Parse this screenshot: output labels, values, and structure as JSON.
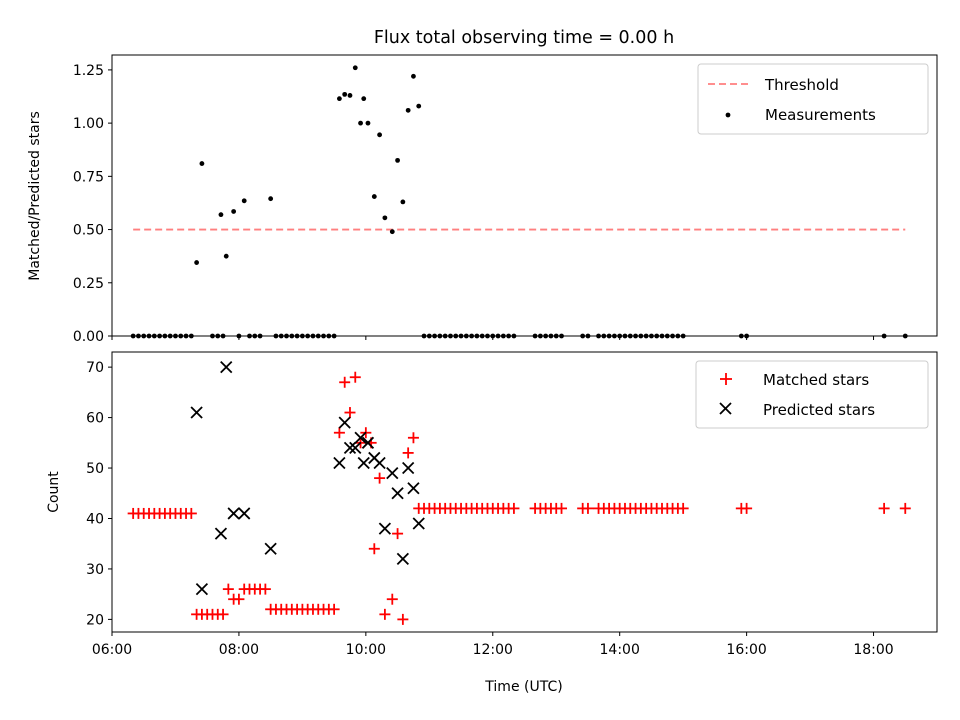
{
  "title": "Flux total observing time = 0.00 h",
  "colors": {
    "threshold": "#ff7f7f",
    "measurements": "#000000",
    "matched": "#ff0000",
    "predicted": "#000000"
  },
  "chart_data": [
    {
      "type": "scatter",
      "ylabel": "Matched/Predicted stars",
      "ylim": [
        0,
        1.32
      ],
      "xlim": [
        "06:00",
        "19:00"
      ],
      "yticks": [
        0.0,
        0.25,
        0.5,
        0.75,
        1.0,
        1.25
      ],
      "ytick_labels": [
        "0.00",
        "0.25",
        "0.50",
        "0.75",
        "1.00",
        "1.25"
      ],
      "legend_position": "top-right",
      "legend": [
        "Threshold",
        "Measurements"
      ],
      "threshold": {
        "value": 0.5,
        "x_start": "06:20",
        "x_end": "18:30"
      },
      "measurement_points": [
        [
          "07:20",
          0.345
        ],
        [
          "07:25",
          0.81
        ],
        [
          "07:43",
          0.57
        ],
        [
          "07:48",
          0.375
        ],
        [
          "07:55",
          0.585
        ],
        [
          "08:05",
          0.635
        ],
        [
          "08:30",
          0.645
        ],
        [
          "09:35",
          1.115
        ],
        [
          "09:40",
          1.135
        ],
        [
          "09:45",
          1.13
        ],
        [
          "09:50",
          1.26
        ],
        [
          "09:55",
          1.0
        ],
        [
          "09:58",
          1.115
        ],
        [
          "10:02",
          1.0
        ],
        [
          "10:08",
          0.655
        ],
        [
          "10:13",
          0.945
        ],
        [
          "10:18",
          0.555
        ],
        [
          "10:25",
          0.49
        ],
        [
          "10:30",
          0.825
        ],
        [
          "10:35",
          0.63
        ],
        [
          "10:40",
          1.06
        ],
        [
          "10:45",
          1.22
        ],
        [
          "10:50",
          1.08
        ]
      ],
      "zero_points_x": [
        "06:20",
        "06:25",
        "06:30",
        "06:35",
        "06:40",
        "06:45",
        "06:50",
        "06:55",
        "07:00",
        "07:05",
        "07:10",
        "07:15",
        "07:35",
        "07:40",
        "07:45",
        "08:00",
        "08:10",
        "08:15",
        "08:20",
        "08:35",
        "08:40",
        "08:45",
        "08:50",
        "08:55",
        "09:00",
        "09:05",
        "09:10",
        "09:15",
        "09:20",
        "09:25",
        "09:30",
        "10:55",
        "11:00",
        "11:05",
        "11:10",
        "11:15",
        "11:20",
        "11:25",
        "11:30",
        "11:35",
        "11:40",
        "11:45",
        "11:50",
        "11:55",
        "12:00",
        "12:05",
        "12:10",
        "12:15",
        "12:20",
        "12:40",
        "12:45",
        "12:50",
        "12:55",
        "13:00",
        "13:05",
        "13:25",
        "13:30",
        "13:40",
        "13:45",
        "13:50",
        "13:55",
        "14:00",
        "14:05",
        "14:10",
        "14:15",
        "14:20",
        "14:25",
        "14:30",
        "14:35",
        "14:40",
        "14:45",
        "14:50",
        "14:55",
        "15:00",
        "15:55",
        "16:00",
        "18:10",
        "18:30"
      ]
    },
    {
      "type": "scatter",
      "xlabel": "Time (UTC)",
      "ylabel": "Count",
      "ylim": [
        17.5,
        73
      ],
      "xlim": [
        "06:00",
        "19:00"
      ],
      "yticks": [
        20,
        30,
        40,
        50,
        60,
        70
      ],
      "xticks": [
        "06:00",
        "08:00",
        "10:00",
        "12:00",
        "14:00",
        "16:00",
        "18:00"
      ],
      "legend_position": "top-right",
      "legend": [
        "Matched stars",
        "Predicted stars"
      ],
      "series": [
        {
          "name": "Matched stars",
          "marker": "plus",
          "points": [
            [
              "06:20",
              41
            ],
            [
              "06:25",
              41
            ],
            [
              "06:30",
              41
            ],
            [
              "06:35",
              41
            ],
            [
              "06:40",
              41
            ],
            [
              "06:45",
              41
            ],
            [
              "06:50",
              41
            ],
            [
              "06:55",
              41
            ],
            [
              "07:00",
              41
            ],
            [
              "07:05",
              41
            ],
            [
              "07:10",
              41
            ],
            [
              "07:15",
              41
            ],
            [
              "07:20",
              21
            ],
            [
              "07:25",
              21
            ],
            [
              "07:30",
              21
            ],
            [
              "07:35",
              21
            ],
            [
              "07:40",
              21
            ],
            [
              "07:45",
              21
            ],
            [
              "07:50",
              26
            ],
            [
              "07:55",
              24
            ],
            [
              "08:00",
              24
            ],
            [
              "08:05",
              26
            ],
            [
              "08:10",
              26
            ],
            [
              "08:15",
              26
            ],
            [
              "08:20",
              26
            ],
            [
              "08:25",
              26
            ],
            [
              "08:30",
              22
            ],
            [
              "08:35",
              22
            ],
            [
              "08:40",
              22
            ],
            [
              "08:45",
              22
            ],
            [
              "08:50",
              22
            ],
            [
              "08:55",
              22
            ],
            [
              "09:00",
              22
            ],
            [
              "09:05",
              22
            ],
            [
              "09:10",
              22
            ],
            [
              "09:15",
              22
            ],
            [
              "09:20",
              22
            ],
            [
              "09:25",
              22
            ],
            [
              "09:30",
              22
            ],
            [
              "09:35",
              57
            ],
            [
              "09:40",
              67
            ],
            [
              "09:45",
              61
            ],
            [
              "09:50",
              68
            ],
            [
              "09:55",
              55
            ],
            [
              "10:00",
              57
            ],
            [
              "10:05",
              55
            ],
            [
              "10:08",
              34
            ],
            [
              "10:13",
              48
            ],
            [
              "10:18",
              21
            ],
            [
              "10:25",
              24
            ],
            [
              "10:30",
              37
            ],
            [
              "10:35",
              20
            ],
            [
              "10:40",
              53
            ],
            [
              "10:45",
              56
            ],
            [
              "10:50",
              42
            ],
            [
              "10:55",
              42
            ],
            [
              "11:00",
              42
            ],
            [
              "11:05",
              42
            ],
            [
              "11:10",
              42
            ],
            [
              "11:15",
              42
            ],
            [
              "11:20",
              42
            ],
            [
              "11:25",
              42
            ],
            [
              "11:30",
              42
            ],
            [
              "11:35",
              42
            ],
            [
              "11:40",
              42
            ],
            [
              "11:45",
              42
            ],
            [
              "11:50",
              42
            ],
            [
              "11:55",
              42
            ],
            [
              "12:00",
              42
            ],
            [
              "12:05",
              42
            ],
            [
              "12:10",
              42
            ],
            [
              "12:15",
              42
            ],
            [
              "12:20",
              42
            ],
            [
              "12:40",
              42
            ],
            [
              "12:45",
              42
            ],
            [
              "12:50",
              42
            ],
            [
              "12:55",
              42
            ],
            [
              "13:00",
              42
            ],
            [
              "13:05",
              42
            ],
            [
              "13:25",
              42
            ],
            [
              "13:30",
              42
            ],
            [
              "13:40",
              42
            ],
            [
              "13:45",
              42
            ],
            [
              "13:50",
              42
            ],
            [
              "13:55",
              42
            ],
            [
              "14:00",
              42
            ],
            [
              "14:05",
              42
            ],
            [
              "14:10",
              42
            ],
            [
              "14:15",
              42
            ],
            [
              "14:20",
              42
            ],
            [
              "14:25",
              42
            ],
            [
              "14:30",
              42
            ],
            [
              "14:35",
              42
            ],
            [
              "14:40",
              42
            ],
            [
              "14:45",
              42
            ],
            [
              "14:50",
              42
            ],
            [
              "14:55",
              42
            ],
            [
              "15:00",
              42
            ],
            [
              "15:55",
              42
            ],
            [
              "16:00",
              42
            ],
            [
              "18:10",
              42
            ],
            [
              "18:30",
              42
            ]
          ]
        },
        {
          "name": "Predicted stars",
          "marker": "x",
          "points": [
            [
              "07:20",
              61
            ],
            [
              "07:25",
              26
            ],
            [
              "07:43",
              37
            ],
            [
              "07:48",
              70
            ],
            [
              "07:55",
              41
            ],
            [
              "08:05",
              41
            ],
            [
              "08:30",
              34
            ],
            [
              "09:35",
              51
            ],
            [
              "09:40",
              59
            ],
            [
              "09:45",
              54
            ],
            [
              "09:50",
              54
            ],
            [
              "09:55",
              56
            ],
            [
              "09:58",
              51
            ],
            [
              "10:02",
              55
            ],
            [
              "10:08",
              52
            ],
            [
              "10:13",
              51
            ],
            [
              "10:18",
              38
            ],
            [
              "10:25",
              49
            ],
            [
              "10:30",
              45
            ],
            [
              "10:35",
              32
            ],
            [
              "10:40",
              50
            ],
            [
              "10:45",
              46
            ],
            [
              "10:50",
              39
            ]
          ]
        }
      ]
    }
  ]
}
